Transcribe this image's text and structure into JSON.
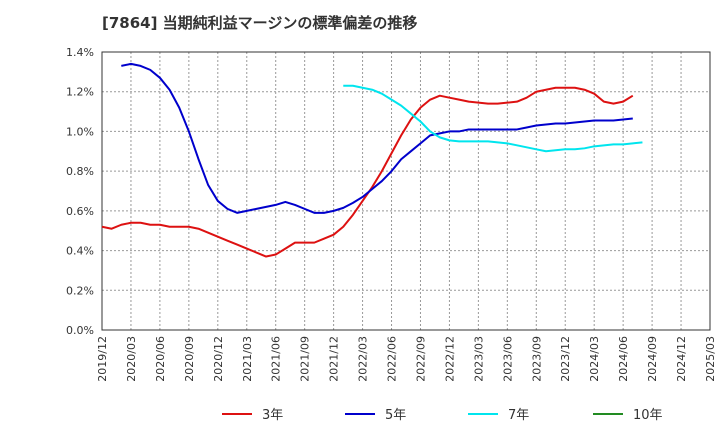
{
  "title": "[7864]  当期純利益マージンの標準偏差の推移",
  "chart_data": {
    "type": "line",
    "title": "[7864]  当期純利益マージンの標準偏差の推移",
    "xlabel": "",
    "ylabel": "",
    "ylim": [
      0,
      1.4
    ],
    "yticks": [
      "0.0%",
      "0.2%",
      "0.4%",
      "0.6%",
      "0.8%",
      "1.0%",
      "1.2%",
      "1.4%"
    ],
    "xticks": [
      "2019/12",
      "2020/03",
      "2020/06",
      "2020/09",
      "2020/12",
      "2021/03",
      "2021/06",
      "2021/09",
      "2021/12",
      "2022/03",
      "2022/06",
      "2022/09",
      "2022/12",
      "2023/03",
      "2023/06",
      "2023/09",
      "2023/12",
      "2024/03",
      "2024/06",
      "2024/09",
      "2024/12",
      "2025/03"
    ],
    "grid": true,
    "legend_position": "bottom",
    "series": [
      {
        "name": "3年",
        "color": "#dd1111",
        "start_index": 0,
        "values": [
          0.52,
          0.51,
          0.53,
          0.54,
          0.54,
          0.53,
          0.53,
          0.52,
          0.52,
          0.52,
          0.51,
          0.49,
          0.47,
          0.45,
          0.43,
          0.41,
          0.39,
          0.37,
          0.38,
          0.41,
          0.44,
          0.44,
          0.44,
          0.46,
          0.48,
          0.52,
          0.58,
          0.65,
          0.72,
          0.8,
          0.89,
          0.98,
          1.06,
          1.12,
          1.16,
          1.18,
          1.17,
          1.16,
          1.15,
          1.145,
          1.14,
          1.14,
          1.145,
          1.15,
          1.17,
          1.2,
          1.21,
          1.22,
          1.22,
          1.22,
          1.21,
          1.19,
          1.15,
          1.14,
          1.15,
          1.18
        ]
      },
      {
        "name": "5年",
        "color": "#0000cc",
        "start_index": 2,
        "values": [
          1.33,
          1.34,
          1.33,
          1.31,
          1.27,
          1.21,
          1.12,
          1.0,
          0.86,
          0.73,
          0.65,
          0.61,
          0.59,
          0.6,
          0.61,
          0.62,
          0.63,
          0.645,
          0.63,
          0.61,
          0.59,
          0.59,
          0.6,
          0.615,
          0.64,
          0.67,
          0.71,
          0.75,
          0.8,
          0.86,
          0.9,
          0.94,
          0.98,
          0.99,
          1.0,
          1.0,
          1.01,
          1.01,
          1.01,
          1.01,
          1.01,
          1.01,
          1.02,
          1.03,
          1.035,
          1.04,
          1.04,
          1.045,
          1.05,
          1.055,
          1.055,
          1.055,
          1.06,
          1.065
        ]
      },
      {
        "name": "7年",
        "color": "#00e5ee",
        "start_index": 25,
        "values": [
          1.23,
          1.23,
          1.22,
          1.21,
          1.19,
          1.16,
          1.13,
          1.09,
          1.05,
          1.0,
          0.97,
          0.955,
          0.95,
          0.95,
          0.95,
          0.95,
          0.945,
          0.94,
          0.93,
          0.92,
          0.91,
          0.9,
          0.905,
          0.91,
          0.91,
          0.915,
          0.925,
          0.93,
          0.935,
          0.935,
          0.94,
          0.945
        ]
      },
      {
        "name": "10年",
        "color": "#228b22",
        "start_index": 0,
        "values": []
      }
    ]
  }
}
